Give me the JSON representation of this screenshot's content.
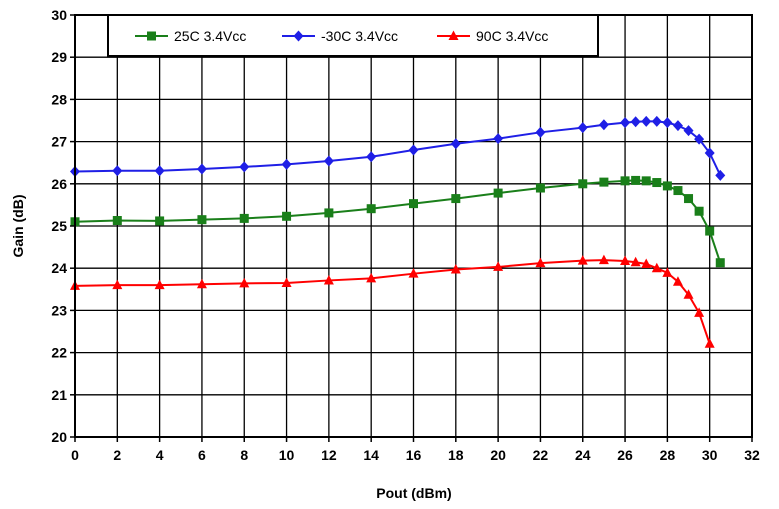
{
  "chart_data": {
    "type": "line",
    "title": "",
    "xlabel": "Pout (dBm)",
    "ylabel": "Gain (dB)",
    "xlim": [
      0,
      32
    ],
    "ylim": [
      20,
      30
    ],
    "x_ticks": [
      "0",
      "2",
      "4",
      "6",
      "8",
      "10",
      "12",
      "14",
      "16",
      "18",
      "20",
      "22",
      "24",
      "26",
      "28",
      "30",
      "32"
    ],
    "y_ticks": [
      "20",
      "21",
      "22",
      "23",
      "24",
      "25",
      "26",
      "27",
      "28",
      "29",
      "30"
    ],
    "grid": true,
    "legend_position": "top",
    "series": [
      {
        "name": "25C 3.4Vcc",
        "color": "#1a7f1a",
        "marker": "square",
        "x": [
          0,
          2,
          4,
          6,
          8,
          10,
          12,
          14,
          16,
          18,
          20,
          22,
          24,
          25,
          26,
          26.5,
          27,
          27.5,
          28,
          28.5,
          29,
          29.5,
          30,
          30.5
        ],
        "y": [
          25.1,
          25.13,
          25.12,
          25.15,
          25.18,
          25.23,
          25.31,
          25.41,
          25.53,
          25.65,
          25.78,
          25.9,
          26.0,
          26.04,
          26.07,
          26.08,
          26.07,
          26.03,
          25.95,
          25.84,
          25.65,
          25.35,
          24.88,
          24.13
        ]
      },
      {
        "name": "-30C 3.4Vcc",
        "color": "#1f1fe6",
        "marker": "diamond",
        "x": [
          0,
          2,
          4,
          6,
          8,
          10,
          12,
          14,
          16,
          18,
          20,
          22,
          24,
          25,
          26,
          26.5,
          27,
          27.5,
          28,
          28.5,
          29,
          29.5,
          30,
          30.5
        ],
        "y": [
          26.29,
          26.31,
          26.31,
          26.35,
          26.4,
          26.46,
          26.54,
          26.64,
          26.8,
          26.95,
          27.07,
          27.22,
          27.33,
          27.4,
          27.45,
          27.47,
          27.48,
          27.48,
          27.45,
          27.38,
          27.26,
          27.06,
          26.73,
          26.2
        ]
      },
      {
        "name": "90C 3.4Vcc",
        "color": "#ff0000",
        "marker": "triangle",
        "x": [
          0,
          2,
          4,
          6,
          8,
          10,
          12,
          14,
          16,
          18,
          20,
          22,
          24,
          25,
          26,
          26.5,
          27,
          27.5,
          28,
          28.5,
          29,
          29.5,
          30
        ],
        "y": [
          23.58,
          23.6,
          23.6,
          23.62,
          23.64,
          23.65,
          23.71,
          23.76,
          23.87,
          23.97,
          24.03,
          24.12,
          24.18,
          24.19,
          24.17,
          24.14,
          24.1,
          24.0,
          23.89,
          23.68,
          23.37,
          22.94,
          22.21
        ]
      }
    ]
  }
}
